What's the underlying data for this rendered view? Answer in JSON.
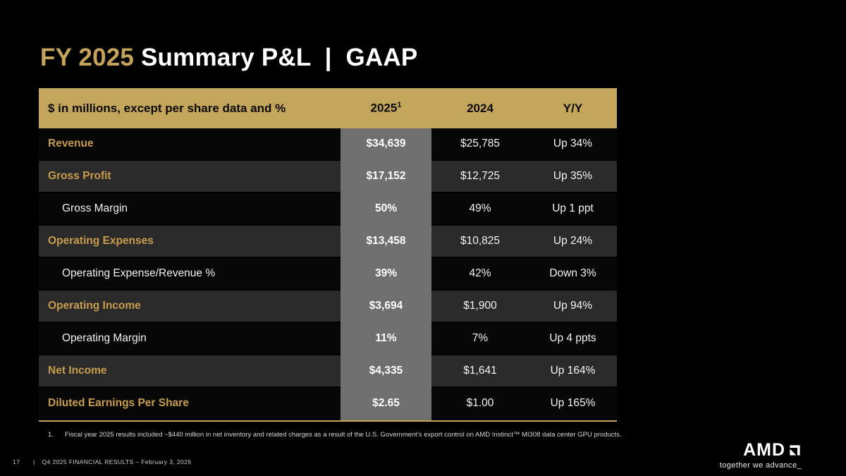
{
  "slide": {
    "title": {
      "highlight": "FY 2025",
      "rest": " Summary P&L  |  GAAP"
    },
    "page_number": "17",
    "footer": {
      "divider": "|",
      "text": "Q4 2025 FINANCIAL RESULTS – February 3, 2026"
    },
    "footnote": {
      "marker": "1.",
      "text": "Fiscal year 2025 results included ~$440 million in net inventory and related charges as a result of the U.S. Government’s export control on AMD Instinct™ MI308 data center GPU products."
    },
    "logo": {
      "text": "AMD",
      "tagline": "together we advance_"
    },
    "colors": {
      "accent_gold_band": "#C3A55C",
      "accent_gold_text": "#C89C4E",
      "highlight_column_gray": "#6F6F6F",
      "stripe_row": "#2A2A2A",
      "background": "#000000"
    }
  },
  "table": {
    "header": {
      "label": "$ in millions, except per share data and %",
      "col_2025": "2025",
      "col_2025_sup": "1",
      "col_2024": "2024",
      "col_yy": "Y/Y"
    },
    "rows": [
      {
        "label": "Revenue",
        "v2025": "$34,639",
        "v2024": "$25,785",
        "yy": "Up 34%",
        "style": "primary"
      },
      {
        "label": "Gross Profit",
        "v2025": "$17,152",
        "v2024": "$12,725",
        "yy": "Up 35%",
        "style": "primary"
      },
      {
        "label": "Gross Margin",
        "v2025": "50%",
        "v2024": "49%",
        "yy": "Up 1 ppt",
        "style": "sub"
      },
      {
        "label": "Operating Expenses",
        "v2025": "$13,458",
        "v2024": "$10,825",
        "yy": "Up 24%",
        "style": "primary"
      },
      {
        "label": "Operating Expense/Revenue %",
        "v2025": "39%",
        "v2024": "42%",
        "yy": "Down 3%",
        "style": "sub"
      },
      {
        "label": "Operating Income",
        "v2025": "$3,694",
        "v2024": "$1,900",
        "yy": "Up 94%",
        "style": "primary"
      },
      {
        "label": "Operating Margin",
        "v2025": "11%",
        "v2024": "7%",
        "yy": "Up 4 ppts",
        "style": "sub"
      },
      {
        "label": "Net Income",
        "v2025": "$4,335",
        "v2024": "$1,641",
        "yy": "Up 164%",
        "style": "primary"
      },
      {
        "label": "Diluted Earnings Per Share",
        "v2025": "$2.65",
        "v2024": "$1.00",
        "yy": "Up 165%",
        "style": "primary"
      }
    ]
  }
}
